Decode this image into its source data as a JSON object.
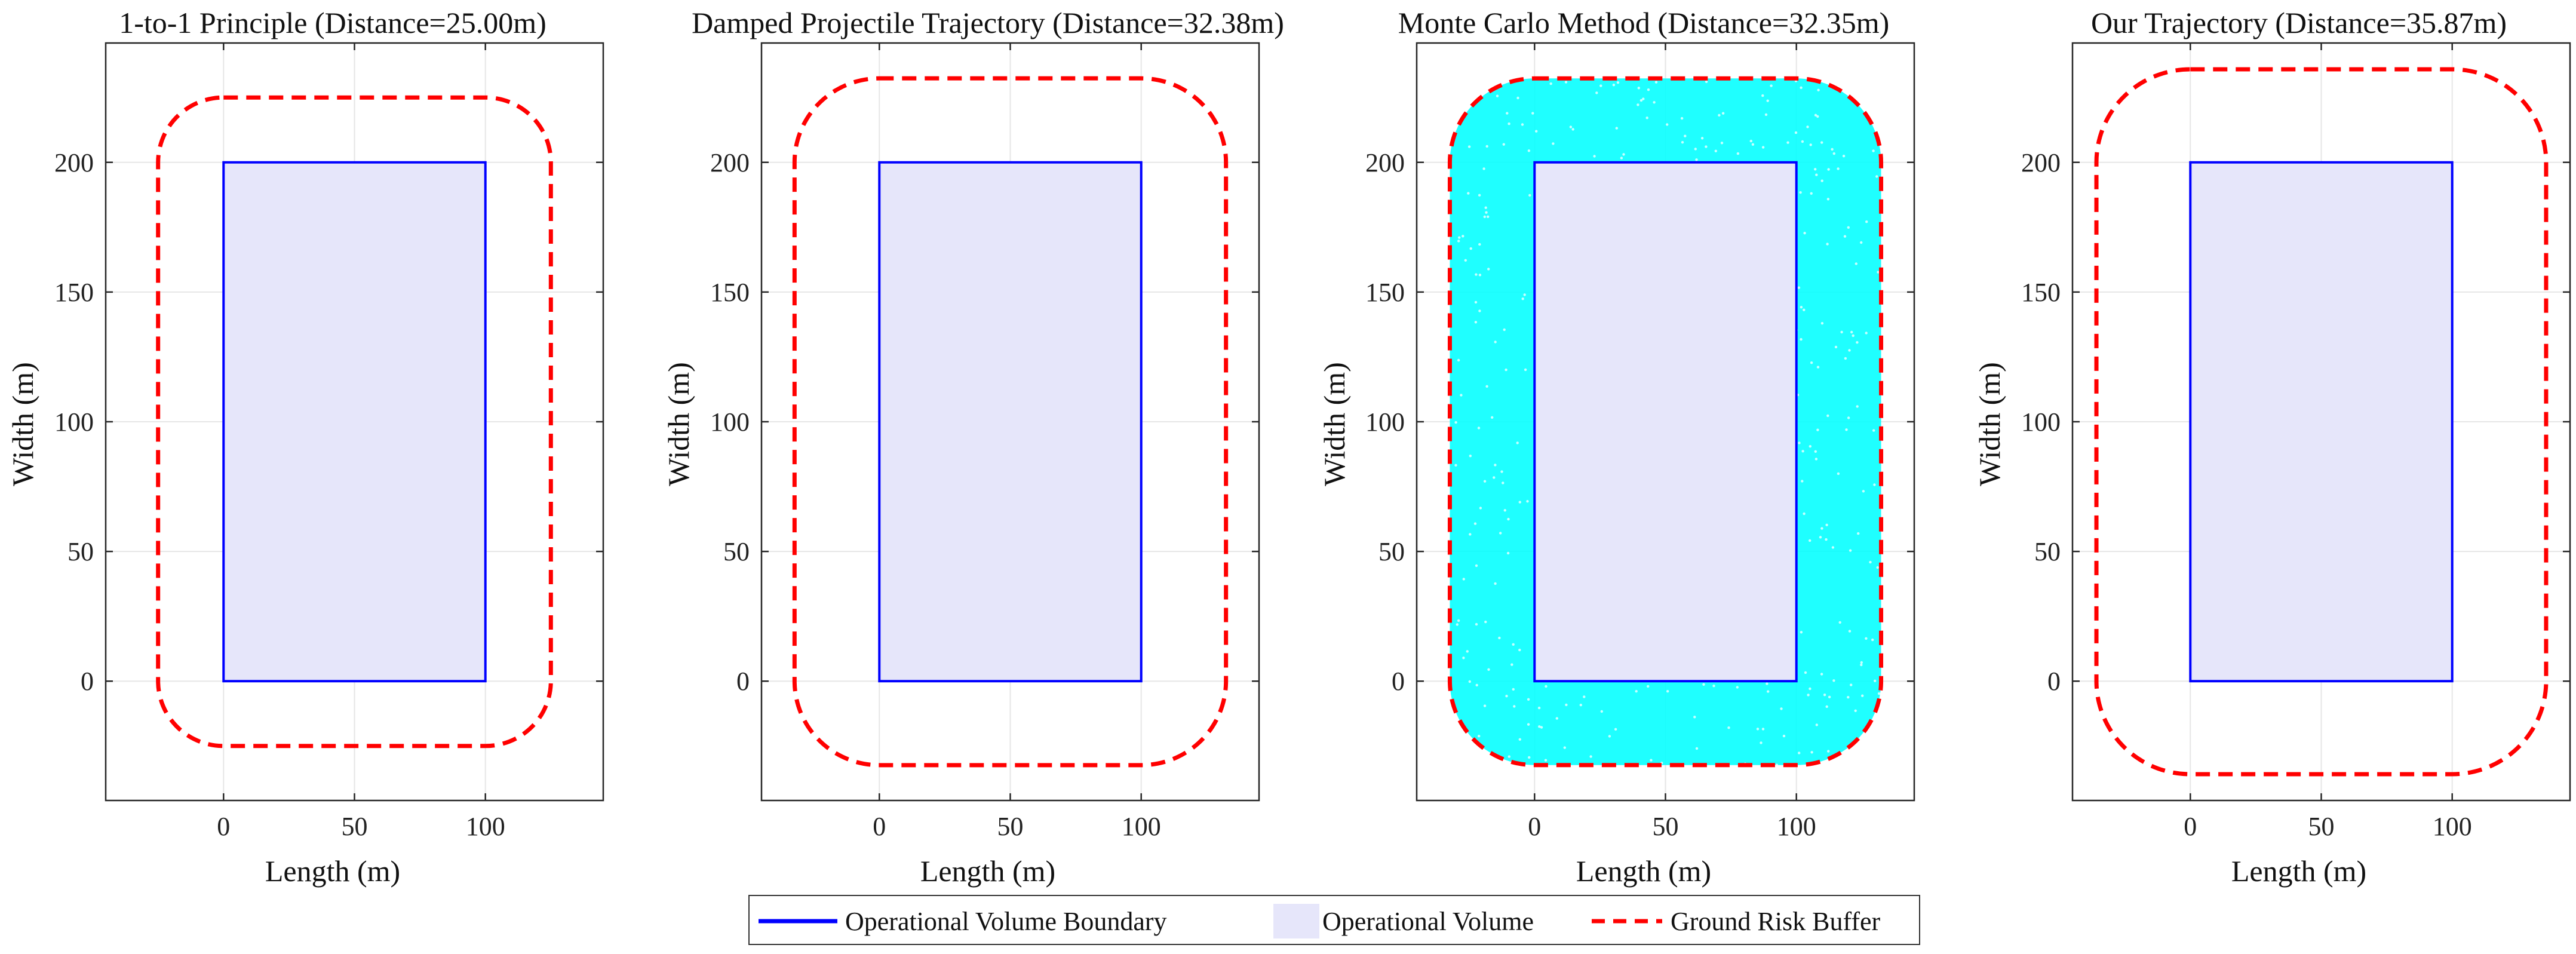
{
  "figure": {
    "legend": [
      {
        "label": "Operational Volume Boundary",
        "kind": "line",
        "color": "#0000FF",
        "style": "solid"
      },
      {
        "label": "Operational Volume",
        "kind": "patch",
        "color": "#E6E6FA"
      },
      {
        "label": "Ground Risk Buffer",
        "kind": "line",
        "color": "#FF0000",
        "style": "dashed"
      }
    ],
    "legend_placement": "bottom-center"
  },
  "chart_data": [
    {
      "type": "line",
      "title": "1-to-1 Principle (Distance=25.00m)",
      "xlabel": "Length (m)",
      "ylabel": "Width (m)",
      "distance": 25.0,
      "xlim": [
        -45,
        145
      ],
      "ylim": [
        -46,
        246
      ],
      "xticks": [
        0,
        50,
        100
      ],
      "yticks": [
        0,
        50,
        100,
        150,
        200
      ],
      "grid": true,
      "operational_volume": {
        "x": [
          0,
          100
        ],
        "y": [
          0,
          200
        ]
      },
      "monte_carlo_scatter": false
    },
    {
      "type": "line",
      "title": "Damped Projectile Trajectory (Distance=32.38m)",
      "xlabel": "Length (m)",
      "ylabel": "Width (m)",
      "distance": 32.38,
      "xlim": [
        -45,
        145
      ],
      "ylim": [
        -46,
        246
      ],
      "xticks": [
        0,
        50,
        100
      ],
      "yticks": [
        0,
        50,
        100,
        150,
        200
      ],
      "grid": true,
      "operational_volume": {
        "x": [
          0,
          100
        ],
        "y": [
          0,
          200
        ]
      },
      "monte_carlo_scatter": false
    },
    {
      "type": "scatter",
      "title": "Monte Carlo Method (Distance=32.35m)",
      "xlabel": "Length (m)",
      "ylabel": "Width (m)",
      "distance": 32.35,
      "xlim": [
        -45,
        145
      ],
      "ylim": [
        -46,
        246
      ],
      "xticks": [
        0,
        50,
        100
      ],
      "yticks": [
        0,
        50,
        100,
        150,
        200
      ],
      "grid": true,
      "operational_volume": {
        "x": [
          0,
          100
        ],
        "y": [
          0,
          200
        ]
      },
      "monte_carlo_scatter": true,
      "scatter_color": "#00FFFF"
    },
    {
      "type": "line",
      "title": "Our Trajectory (Distance=35.87m)",
      "xlabel": "Length (m)",
      "ylabel": "Width (m)",
      "distance": 35.87,
      "xlim": [
        -45,
        145
      ],
      "ylim": [
        -46,
        246
      ],
      "xticks": [
        0,
        50,
        100
      ],
      "yticks": [
        0,
        50,
        100,
        150,
        200
      ],
      "grid": true,
      "operational_volume": {
        "x": [
          0,
          100
        ],
        "y": [
          0,
          200
        ]
      },
      "monte_carlo_scatter": false
    }
  ]
}
